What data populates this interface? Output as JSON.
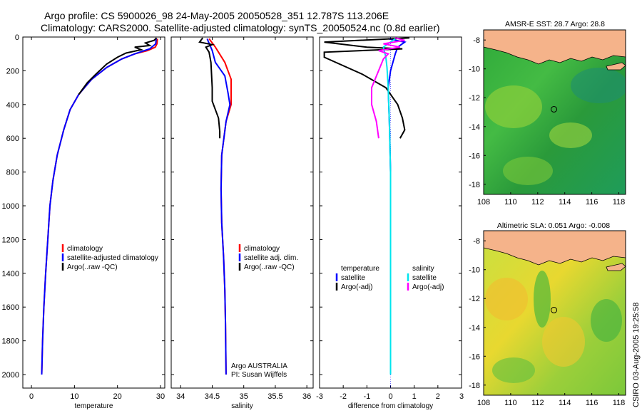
{
  "header": {
    "line1": "Argo profile: CS 5900026_98 24-May-2005 20050528_351 12.787S 113.206E",
    "line2": "Climatology: CARS2000. Satellite-adjusted climatology: synTS_20050524.nc (0.8d earlier)"
  },
  "side_stamp": "CSIRO 03-Aug-2005 19:25:58",
  "colors": {
    "climatology": "#ff0000",
    "satellite": "#0000ff",
    "argo": "#000000",
    "sat_salinity": "#00e5ee",
    "argo_salinity": "#ff00ff"
  },
  "chart_data": [
    {
      "type": "line",
      "xlabel": "temperature",
      "xlim": [
        -2,
        31
      ],
      "ylim": [
        2080,
        0
      ],
      "x_ticks": [
        "0",
        "10",
        "20",
        "30"
      ],
      "x_tick_values": [
        0,
        10,
        20,
        30
      ],
      "y_ticks": [
        "0",
        "200",
        "400",
        "600",
        "800",
        "1000",
        "1200",
        "1400",
        "1600",
        "1800",
        "2000"
      ],
      "y_tick_values": [
        0,
        200,
        400,
        600,
        800,
        1000,
        1200,
        1400,
        1600,
        1800,
        2000
      ],
      "legend": [
        "climatology",
        "satellite-adjusted climatology",
        "Argo(..raw -QC)"
      ],
      "series": [
        {
          "color": "#ff0000",
          "points": [
            [
              29.3,
              10
            ],
            [
              29.2,
              40
            ],
            [
              28.8,
              60
            ],
            [
              27,
              80
            ],
            [
              24,
              100
            ],
            [
              21,
              130
            ],
            [
              17.5,
              180
            ],
            [
              14,
              250
            ],
            [
              11,
              340
            ],
            [
              9,
              430
            ],
            [
              7.5,
              550
            ],
            [
              6,
              700
            ],
            [
              5,
              850
            ],
            [
              4.3,
              1000
            ],
            [
              3.8,
              1200
            ],
            [
              3.3,
              1400
            ],
            [
              2.9,
              1600
            ],
            [
              2.6,
              1800
            ],
            [
              2.4,
              2000
            ]
          ]
        },
        {
          "color": "#0000ff",
          "points": [
            [
              29.0,
              10
            ],
            [
              28.9,
              40
            ],
            [
              27.5,
              70
            ],
            [
              24,
              100
            ],
            [
              21,
              130
            ],
            [
              17.5,
              180
            ],
            [
              14,
              250
            ],
            [
              11,
              340
            ],
            [
              9,
              430
            ],
            [
              7.5,
              550
            ],
            [
              6,
              700
            ],
            [
              5,
              850
            ],
            [
              4.3,
              1000
            ],
            [
              3.8,
              1200
            ],
            [
              3.3,
              1400
            ],
            [
              2.9,
              1600
            ],
            [
              2.6,
              1800
            ],
            [
              2.4,
              2000
            ]
          ]
        },
        {
          "color": "#000000",
          "points": [
            [
              29.1,
              5
            ],
            [
              28.5,
              20
            ],
            [
              26.5,
              35
            ],
            [
              27.5,
              50
            ],
            [
              24,
              60
            ],
            [
              25.5,
              75
            ],
            [
              22,
              95
            ],
            [
              20,
              120
            ],
            [
              17.5,
              160
            ],
            [
              15,
              220
            ],
            [
              13,
              270
            ],
            [
              11,
              340
            ]
          ]
        }
      ]
    },
    {
      "type": "line",
      "xlabel": "salinity",
      "xlim": [
        33.85,
        36.1
      ],
      "ylim": [
        2080,
        0
      ],
      "x_ticks": [
        "34",
        "34.5",
        "35",
        "35.5",
        "36"
      ],
      "x_tick_values": [
        34,
        34.5,
        35,
        35.5,
        36
      ],
      "legend": [
        "climatology",
        "satellite adj. clim.",
        "Argo(..raw -QC)"
      ],
      "annotation": [
        "Argo AUSTRALIA",
        "PI: Susan Wijffels"
      ],
      "series": [
        {
          "color": "#ff0000",
          "points": [
            [
              34.45,
              10
            ],
            [
              34.55,
              60
            ],
            [
              34.7,
              150
            ],
            [
              34.8,
              250
            ],
            [
              34.8,
              400
            ],
            [
              34.72,
              500
            ],
            [
              34.65,
              700
            ],
            [
              34.64,
              900
            ],
            [
              34.65,
              1100
            ],
            [
              34.68,
              1300
            ],
            [
              34.7,
              1500
            ],
            [
              34.71,
              1700
            ],
            [
              34.72,
              2000
            ]
          ]
        },
        {
          "color": "#0000ff",
          "points": [
            [
              34.42,
              10
            ],
            [
              34.5,
              80
            ],
            [
              34.55,
              150
            ],
            [
              34.7,
              230
            ],
            [
              34.75,
              330
            ],
            [
              34.78,
              400
            ],
            [
              34.72,
              500
            ],
            [
              34.65,
              700
            ],
            [
              34.64,
              900
            ],
            [
              34.65,
              1100
            ],
            [
              34.68,
              1300
            ],
            [
              34.7,
              1500
            ],
            [
              34.71,
              1700
            ],
            [
              34.72,
              2000
            ]
          ]
        },
        {
          "color": "#000000",
          "points": [
            [
              34.35,
              5
            ],
            [
              34.3,
              30
            ],
            [
              34.5,
              45
            ],
            [
              34.4,
              60
            ],
            [
              34.45,
              90
            ],
            [
              34.48,
              150
            ],
            [
              34.5,
              300
            ],
            [
              34.5,
              380
            ],
            [
              34.6,
              480
            ],
            [
              34.62,
              560
            ],
            [
              34.62,
              600
            ]
          ]
        }
      ]
    },
    {
      "type": "line",
      "xlabel": "difference from climatology",
      "xlim": [
        -3,
        3
      ],
      "ylim": [
        2080,
        0
      ],
      "x_ticks": [
        "-3",
        "-2",
        "-1",
        "0",
        "1",
        "2",
        "3"
      ],
      "x_tick_values": [
        -3,
        -2,
        -1,
        0,
        1,
        2,
        3
      ],
      "legend": [
        "temperature",
        "satellite",
        "Argo(-adj)",
        "salinity",
        "satellite",
        "Argo(-adj)"
      ],
      "series": [
        {
          "name": "temperature satellite",
          "color": "#0000ff",
          "points": [
            [
              -0.1,
              10
            ],
            [
              0.6,
              30
            ],
            [
              0.3,
              60
            ],
            [
              0.2,
              100
            ],
            [
              0,
              200
            ],
            [
              -0.1,
              300
            ],
            [
              -0.05,
              500
            ],
            [
              0,
              800
            ],
            [
              0,
              1000
            ],
            [
              0,
              1300
            ],
            [
              0,
              1600
            ]
          ]
        },
        {
          "name": "temperature Argo(-adj)",
          "color": "#000000",
          "points": [
            [
              0.8,
              5
            ],
            [
              -2.8,
              30
            ],
            [
              -1,
              60
            ],
            [
              0.5,
              70
            ],
            [
              -2.8,
              90
            ],
            [
              -2.8,
              120
            ],
            [
              -1.2,
              220
            ],
            [
              -0.2,
              300
            ],
            [
              0.3,
              400
            ],
            [
              0.5,
              480
            ],
            [
              0.6,
              550
            ],
            [
              0.4,
              600
            ]
          ]
        },
        {
          "name": "salinity satellite",
          "color": "#00e5ee",
          "points": [
            [
              0.2,
              10
            ],
            [
              -0.3,
              60
            ],
            [
              -0.2,
              120
            ],
            [
              -0.15,
              180
            ],
            [
              -0.1,
              300
            ],
            [
              -0.05,
              500
            ],
            [
              0,
              800
            ],
            [
              0,
              1000
            ],
            [
              0,
              1300
            ],
            [
              0,
              1600
            ],
            [
              0,
              1800
            ],
            [
              0,
              2000
            ]
          ]
        },
        {
          "name": "salinity Argo(-adj)",
          "color": "#ff00ff",
          "points": [
            [
              0.2,
              5
            ],
            [
              0.6,
              20
            ],
            [
              -0.3,
              40
            ],
            [
              0.4,
              60
            ],
            [
              -0.5,
              80
            ],
            [
              -0.1,
              100
            ],
            [
              -0.3,
              130
            ],
            [
              -0.8,
              300
            ],
            [
              -0.8,
              400
            ],
            [
              -0.6,
              500
            ],
            [
              -0.5,
              600
            ]
          ]
        }
      ]
    }
  ],
  "maps": [
    {
      "title": "AMSR-E SST: 28.7 Argo: 28.8",
      "xlim": [
        108,
        118.5
      ],
      "ylim": [
        -18.7,
        -7.3
      ],
      "x_ticks": [
        "108",
        "110",
        "112",
        "114",
        "116",
        "118"
      ],
      "x_tick_values": [
        108,
        110,
        112,
        114,
        116,
        118
      ],
      "y_ticks": [
        "-8",
        "-10",
        "-12",
        "-14",
        "-16",
        "-18"
      ],
      "y_tick_values": [
        -8,
        -10,
        -12,
        -14,
        -16,
        -18
      ],
      "marker": [
        113.2,
        -12.8
      ]
    },
    {
      "title": "Altimetric SLA: 0.051 Argo: -0.008",
      "xlim": [
        108,
        118.5
      ],
      "ylim": [
        -18.7,
        -7.3
      ],
      "x_ticks": [
        "108",
        "110",
        "112",
        "114",
        "116",
        "118"
      ],
      "x_tick_values": [
        108,
        110,
        112,
        114,
        116,
        118
      ],
      "y_ticks": [
        "-8",
        "-10",
        "-12",
        "-14",
        "-16",
        "-18"
      ],
      "y_tick_values": [
        -8,
        -10,
        -12,
        -14,
        -16,
        -18
      ],
      "marker": [
        113.2,
        -12.8
      ]
    }
  ]
}
